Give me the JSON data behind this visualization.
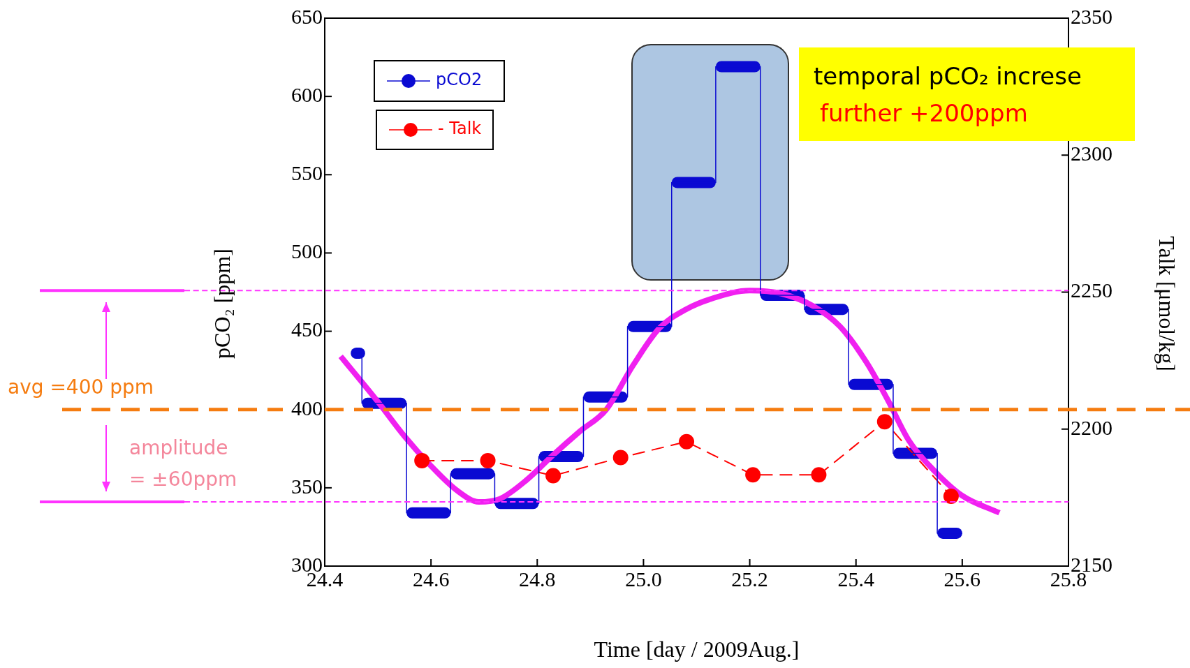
{
  "chart_data": {
    "type": "step",
    "xlabel": "Time [day / 2009Aug.]",
    "ylabel": "pCO₂ [ppm]",
    "y2label": "Talk [μmol/kg]",
    "xlim": [
      24.4,
      25.8
    ],
    "xticks": [
      24.4,
      24.6,
      24.8,
      {
        "value": 25,
        "label": "25.0"
      },
      25.2,
      25.4,
      25.6,
      25.8
    ],
    "ylim": [
      300,
      650
    ],
    "yticks": [
      300,
      350,
      400,
      450,
      500,
      550,
      600,
      650
    ],
    "y2lim": [
      2150,
      2350
    ],
    "y2ticks": [
      2150,
      2200,
      2250,
      2300,
      2350
    ],
    "legend": "top left",
    "series": [
      {
        "name": "pCO2",
        "color": "#0a0ad2",
        "x": [
          24.455,
          24.47,
          24.554,
          24.637,
          24.72,
          24.803,
          24.887,
          24.97,
          25.053,
          25.136,
          25.22,
          25.303,
          25.386,
          25.47,
          25.553,
          25.6
        ],
        "values": [
          436,
          404,
          334,
          359,
          340,
          370,
          408,
          453,
          545,
          619,
          473,
          464,
          416,
          372,
          321,
          321
        ]
      },
      {
        "name": "- Talk",
        "type": "line",
        "axis": "y2",
        "color": "#ff0000",
        "marker": "circle",
        "line_style": "dashed",
        "x": [
          24.583,
          24.707,
          24.83,
          24.957,
          25.081,
          25.206,
          25.33,
          25.454,
          25.579
        ],
        "values": [
          2188.5,
          2188.5,
          2183,
          2189.6,
          2195.4,
          2183.3,
          2183.3,
          2202.7,
          2175.5
        ]
      },
      {
        "type": "line",
        "color": "#f020f0",
        "x": [
          24.43,
          24.5,
          24.55,
          24.6,
          24.65,
          24.69,
          24.73,
          24.78,
          24.83,
          24.88,
          24.93,
          24.98,
          25.03,
          25.08,
          25.13,
          25.2,
          25.26,
          25.32,
          25.37,
          25.42,
          25.46,
          25.5,
          25.55,
          25.6,
          25.67
        ],
        "values": [
          434,
          405,
          383,
          364,
          348,
          341,
          343,
          355,
          371,
          386,
          400,
          428,
          452,
          464,
          471,
          476,
          474,
          466,
          453,
          430,
          406,
          380,
          360,
          345,
          334
        ]
      }
    ],
    "ref_lines": [
      {
        "axis": "y",
        "value": 400,
        "label": "avg =400 ppm",
        "color": "#f57c10",
        "line_style": "dashed"
      },
      {
        "axis": "y",
        "value": 476,
        "color": "#ff33ff",
        "line_style": "dashed"
      },
      {
        "axis": "y",
        "value": 341,
        "color": "#ff33ff",
        "line_style": "dashed"
      }
    ],
    "annotations": [
      "amplitude",
      "= ±60ppm",
      "temporal pCO₂ increse",
      "further +200ppm"
    ]
  }
}
